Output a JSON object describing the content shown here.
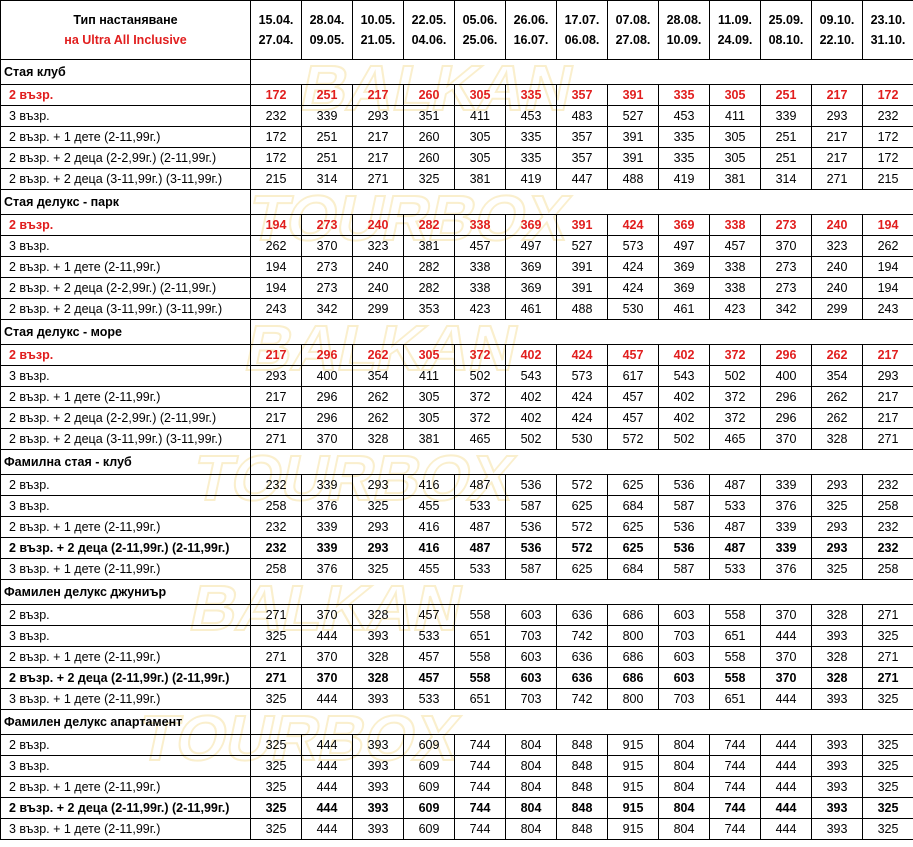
{
  "header": {
    "type_label": "Тип настаняване",
    "type_sub": "на Ultra All Inclusive",
    "periods": [
      {
        "from": "15.04.",
        "to": "27.04."
      },
      {
        "from": "28.04.",
        "to": "09.05."
      },
      {
        "from": "10.05.",
        "to": "21.05."
      },
      {
        "from": "22.05.",
        "to": "04.06."
      },
      {
        "from": "05.06.",
        "to": "25.06."
      },
      {
        "from": "26.06.",
        "to": "16.07."
      },
      {
        "from": "17.07.",
        "to": "06.08."
      },
      {
        "from": "07.08.",
        "to": "27.08."
      },
      {
        "from": "28.08.",
        "to": "10.09."
      },
      {
        "from": "11.09.",
        "to": "24.09."
      },
      {
        "from": "25.09.",
        "to": "08.10."
      },
      {
        "from": "09.10.",
        "to": "22.10."
      },
      {
        "from": "23.10.",
        "to": "31.10."
      }
    ]
  },
  "colors": {
    "highlight": "#e11e1e",
    "border": "#000000",
    "watermark": "#f0d070"
  },
  "sections": [
    {
      "title": "Стая клуб",
      "rows": [
        {
          "label": "2 възр.",
          "style": "red",
          "values": [
            "172",
            "251",
            "217",
            "260",
            "305",
            "335",
            "357",
            "391",
            "335",
            "305",
            "251",
            "217",
            "172"
          ]
        },
        {
          "label": "3 възр.",
          "style": "normal",
          "values": [
            "232",
            "339",
            "293",
            "351",
            "411",
            "453",
            "483",
            "527",
            "453",
            "411",
            "339",
            "293",
            "232"
          ]
        },
        {
          "label": "2 възр. + 1 дете (2-11,99г.)",
          "style": "normal",
          "values": [
            "172",
            "251",
            "217",
            "260",
            "305",
            "335",
            "357",
            "391",
            "335",
            "305",
            "251",
            "217",
            "172"
          ]
        },
        {
          "label": "2 възр. + 2 деца (2-2,99г.) (2-11,99г.)",
          "style": "normal",
          "values": [
            "172",
            "251",
            "217",
            "260",
            "305",
            "335",
            "357",
            "391",
            "335",
            "305",
            "251",
            "217",
            "172"
          ]
        },
        {
          "label": "2 възр. + 2 деца (3-11,99г.) (3-11,99г.)",
          "style": "normal",
          "values": [
            "215",
            "314",
            "271",
            "325",
            "381",
            "419",
            "447",
            "488",
            "419",
            "381",
            "314",
            "271",
            "215"
          ]
        }
      ]
    },
    {
      "title": "Стая делукс - парк",
      "rows": [
        {
          "label": "2 възр.",
          "style": "red",
          "values": [
            "194",
            "273",
            "240",
            "282",
            "338",
            "369",
            "391",
            "424",
            "369",
            "338",
            "273",
            "240",
            "194"
          ]
        },
        {
          "label": "3 възр.",
          "style": "normal",
          "values": [
            "262",
            "370",
            "323",
            "381",
            "457",
            "497",
            "527",
            "573",
            "497",
            "457",
            "370",
            "323",
            "262"
          ]
        },
        {
          "label": "2 възр. + 1 дете (2-11,99г.)",
          "style": "normal",
          "values": [
            "194",
            "273",
            "240",
            "282",
            "338",
            "369",
            "391",
            "424",
            "369",
            "338",
            "273",
            "240",
            "194"
          ]
        },
        {
          "label": "2 възр. + 2 деца (2-2,99г.) (2-11,99г.)",
          "style": "normal",
          "values": [
            "194",
            "273",
            "240",
            "282",
            "338",
            "369",
            "391",
            "424",
            "369",
            "338",
            "273",
            "240",
            "194"
          ]
        },
        {
          "label": "2 възр. + 2 деца (3-11,99г.) (3-11,99г.)",
          "style": "normal",
          "values": [
            "243",
            "342",
            "299",
            "353",
            "423",
            "461",
            "488",
            "530",
            "461",
            "423",
            "342",
            "299",
            "243"
          ]
        }
      ]
    },
    {
      "title": "Стая делукс - море",
      "rows": [
        {
          "label": "2 възр.",
          "style": "red",
          "values": [
            "217",
            "296",
            "262",
            "305",
            "372",
            "402",
            "424",
            "457",
            "402",
            "372",
            "296",
            "262",
            "217"
          ]
        },
        {
          "label": "3 възр.",
          "style": "normal",
          "values": [
            "293",
            "400",
            "354",
            "411",
            "502",
            "543",
            "573",
            "617",
            "543",
            "502",
            "400",
            "354",
            "293"
          ]
        },
        {
          "label": "2 възр. + 1 дете (2-11,99г.)",
          "style": "normal",
          "values": [
            "217",
            "296",
            "262",
            "305",
            "372",
            "402",
            "424",
            "457",
            "402",
            "372",
            "296",
            "262",
            "217"
          ]
        },
        {
          "label": "2 възр. + 2 деца (2-2,99г.) (2-11,99г.)",
          "style": "normal",
          "values": [
            "217",
            "296",
            "262",
            "305",
            "372",
            "402",
            "424",
            "457",
            "402",
            "372",
            "296",
            "262",
            "217"
          ]
        },
        {
          "label": "2 възр. + 2 деца (3-11,99г.) (3-11,99г.)",
          "style": "normal",
          "values": [
            "271",
            "370",
            "328",
            "381",
            "465",
            "502",
            "530",
            "572",
            "502",
            "465",
            "370",
            "328",
            "271"
          ]
        }
      ]
    },
    {
      "title": "Фамилна стая - клуб",
      "rows": [
        {
          "label": "2 възр.",
          "style": "normal",
          "values": [
            "232",
            "339",
            "293",
            "416",
            "487",
            "536",
            "572",
            "625",
            "536",
            "487",
            "339",
            "293",
            "232"
          ]
        },
        {
          "label": "3 възр.",
          "style": "normal",
          "values": [
            "258",
            "376",
            "325",
            "455",
            "533",
            "587",
            "625",
            "684",
            "587",
            "533",
            "376",
            "325",
            "258"
          ]
        },
        {
          "label": "2 възр. + 1 дете (2-11,99г.)",
          "style": "normal",
          "values": [
            "232",
            "339",
            "293",
            "416",
            "487",
            "536",
            "572",
            "625",
            "536",
            "487",
            "339",
            "293",
            "232"
          ]
        },
        {
          "label": "2 възр. + 2 деца (2-11,99г.) (2-11,99г.)",
          "style": "bold",
          "values": [
            "232",
            "339",
            "293",
            "416",
            "487",
            "536",
            "572",
            "625",
            "536",
            "487",
            "339",
            "293",
            "232"
          ]
        },
        {
          "label": "3 възр. + 1 дете (2-11,99г.)",
          "style": "normal",
          "values": [
            "258",
            "376",
            "325",
            "455",
            "533",
            "587",
            "625",
            "684",
            "587",
            "533",
            "376",
            "325",
            "258"
          ]
        }
      ]
    },
    {
      "title": "Фамилен делукс джуниър",
      "rows": [
        {
          "label": "2 възр.",
          "style": "normal",
          "values": [
            "271",
            "370",
            "328",
            "457",
            "558",
            "603",
            "636",
            "686",
            "603",
            "558",
            "370",
            "328",
            "271"
          ]
        },
        {
          "label": "3 възр.",
          "style": "normal",
          "values": [
            "325",
            "444",
            "393",
            "533",
            "651",
            "703",
            "742",
            "800",
            "703",
            "651",
            "444",
            "393",
            "325"
          ]
        },
        {
          "label": "2 възр. + 1 дете (2-11,99г.)",
          "style": "normal",
          "values": [
            "271",
            "370",
            "328",
            "457",
            "558",
            "603",
            "636",
            "686",
            "603",
            "558",
            "370",
            "328",
            "271"
          ]
        },
        {
          "label": "2 възр. + 2 деца (2-11,99г.) (2-11,99г.)",
          "style": "bold",
          "values": [
            "271",
            "370",
            "328",
            "457",
            "558",
            "603",
            "636",
            "686",
            "603",
            "558",
            "370",
            "328",
            "271"
          ]
        },
        {
          "label": "3 възр. + 1 дете (2-11,99г.)",
          "style": "normal",
          "values": [
            "325",
            "444",
            "393",
            "533",
            "651",
            "703",
            "742",
            "800",
            "703",
            "651",
            "444",
            "393",
            "325"
          ]
        }
      ]
    },
    {
      "title": "Фамилен делукс апартамент",
      "rows": [
        {
          "label": "2 възр.",
          "style": "normal",
          "values": [
            "325",
            "444",
            "393",
            "609",
            "744",
            "804",
            "848",
            "915",
            "804",
            "744",
            "444",
            "393",
            "325"
          ]
        },
        {
          "label": "3 възр.",
          "style": "normal",
          "values": [
            "325",
            "444",
            "393",
            "609",
            "744",
            "804",
            "848",
            "915",
            "804",
            "744",
            "444",
            "393",
            "325"
          ]
        },
        {
          "label": "2 възр. + 1 дете (2-11,99г.)",
          "style": "normal",
          "values": [
            "325",
            "444",
            "393",
            "609",
            "744",
            "804",
            "848",
            "915",
            "804",
            "744",
            "444",
            "393",
            "325"
          ]
        },
        {
          "label": "2 възр. + 2 деца (2-11,99г.) (2-11,99г.)",
          "style": "bold",
          "values": [
            "325",
            "444",
            "393",
            "609",
            "744",
            "804",
            "848",
            "915",
            "804",
            "744",
            "444",
            "393",
            "325"
          ]
        },
        {
          "label": "3 възр. + 1 дете (2-11,99г.)",
          "style": "normal",
          "values": [
            "325",
            "444",
            "393",
            "609",
            "744",
            "804",
            "848",
            "915",
            "804",
            "744",
            "444",
            "393",
            "325"
          ]
        }
      ]
    }
  ],
  "watermark": {
    "lines": [
      "BALKAN",
      "TOURBOX"
    ]
  }
}
